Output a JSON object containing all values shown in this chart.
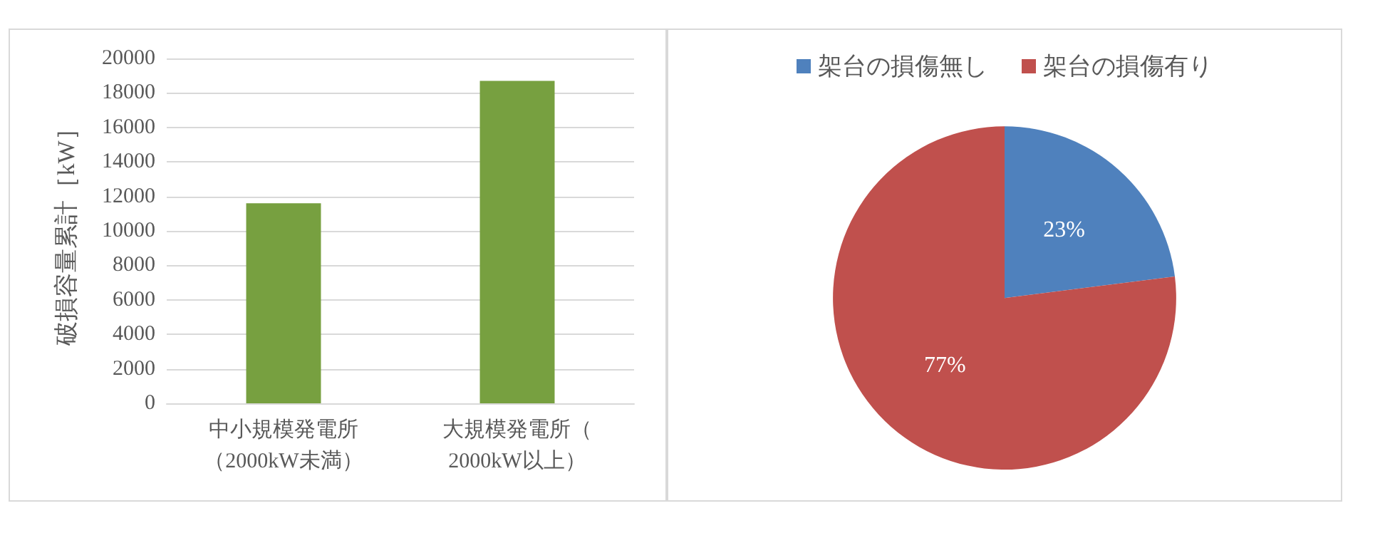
{
  "chart_data": [
    {
      "type": "bar",
      "ylabel": "破損容量累計［kW］",
      "categories": [
        "中小規模発電所（2000kW未満）",
        "大規模発電所（2000kW以上）"
      ],
      "values": [
        11600,
        18700
      ],
      "color": "#77a040",
      "ylim": [
        0,
        20000
      ],
      "yticks": [
        0,
        2000,
        4000,
        6000,
        8000,
        10000,
        12000,
        14000,
        16000,
        18000,
        20000
      ],
      "grid": "y",
      "legend": false
    },
    {
      "type": "pie",
      "categories": [
        "架台の損傷無し",
        "架台の損傷有り"
      ],
      "values": [
        23,
        77
      ],
      "colors": [
        "#4f81bd",
        "#c0504d"
      ],
      "value_labels": [
        "23%",
        "77%"
      ],
      "legend": "top"
    }
  ]
}
